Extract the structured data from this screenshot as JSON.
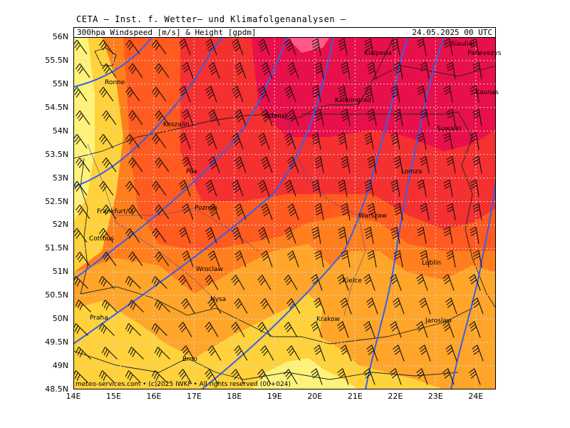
{
  "title_line": "CETA — Inst. f. Wetter— und Klimafolgenanalysen —",
  "header": {
    "left": "300hpa Windspeed [m/s] & Height [gpdm]",
    "right": "24.05.2025 00 UTC"
  },
  "lat_labels": [
    "56N",
    "55.5N",
    "55N",
    "54.5N",
    "54N",
    "53.5N",
    "53N",
    "52.5N",
    "52N",
    "51.5N",
    "51N",
    "50.5N",
    "50N",
    "49.5N",
    "49N",
    "48.5N"
  ],
  "lon_labels": [
    "14E",
    "15E",
    "16E",
    "17E",
    "18E",
    "19E",
    "20E",
    "21E",
    "22E",
    "23E",
    "24E"
  ],
  "cities": [
    {
      "name": "Klaipeda"
    },
    {
      "name": "Siauliai"
    },
    {
      "name": "Panevezys"
    },
    {
      "name": "Kaunas"
    },
    {
      "name": "Ronne"
    },
    {
      "name": "Kaliningrad"
    },
    {
      "name": "Gdansk"
    },
    {
      "name": "Koszalin"
    },
    {
      "name": "Suwalki"
    },
    {
      "name": "Pila"
    },
    {
      "name": "Lomza"
    },
    {
      "name": "Poznan"
    },
    {
      "name": "Frankfurt/O"
    },
    {
      "name": "Warszaw"
    },
    {
      "name": "Cottbus"
    },
    {
      "name": "Lublin"
    },
    {
      "name": "Wroclaw"
    },
    {
      "name": "Kielce"
    },
    {
      "name": "Nysa"
    },
    {
      "name": "Praha"
    },
    {
      "name": "Krakow"
    },
    {
      "name": "Jaroslaw"
    },
    {
      "name": "Brno"
    }
  ],
  "footer": "meteo-services.com • (c)2025 IWKF • All rights reserved (00+024)",
  "colors": {
    "light_yellow": "#fff27a",
    "yellow": "#ffd23c",
    "orange_light": "#ffa52a",
    "orange": "#ff7f1e",
    "orange_red": "#ff5a20",
    "red": "#f53030",
    "crimson": "#e8104a",
    "pink": "#ff5a8a",
    "contour": "#3a5ee8"
  }
}
